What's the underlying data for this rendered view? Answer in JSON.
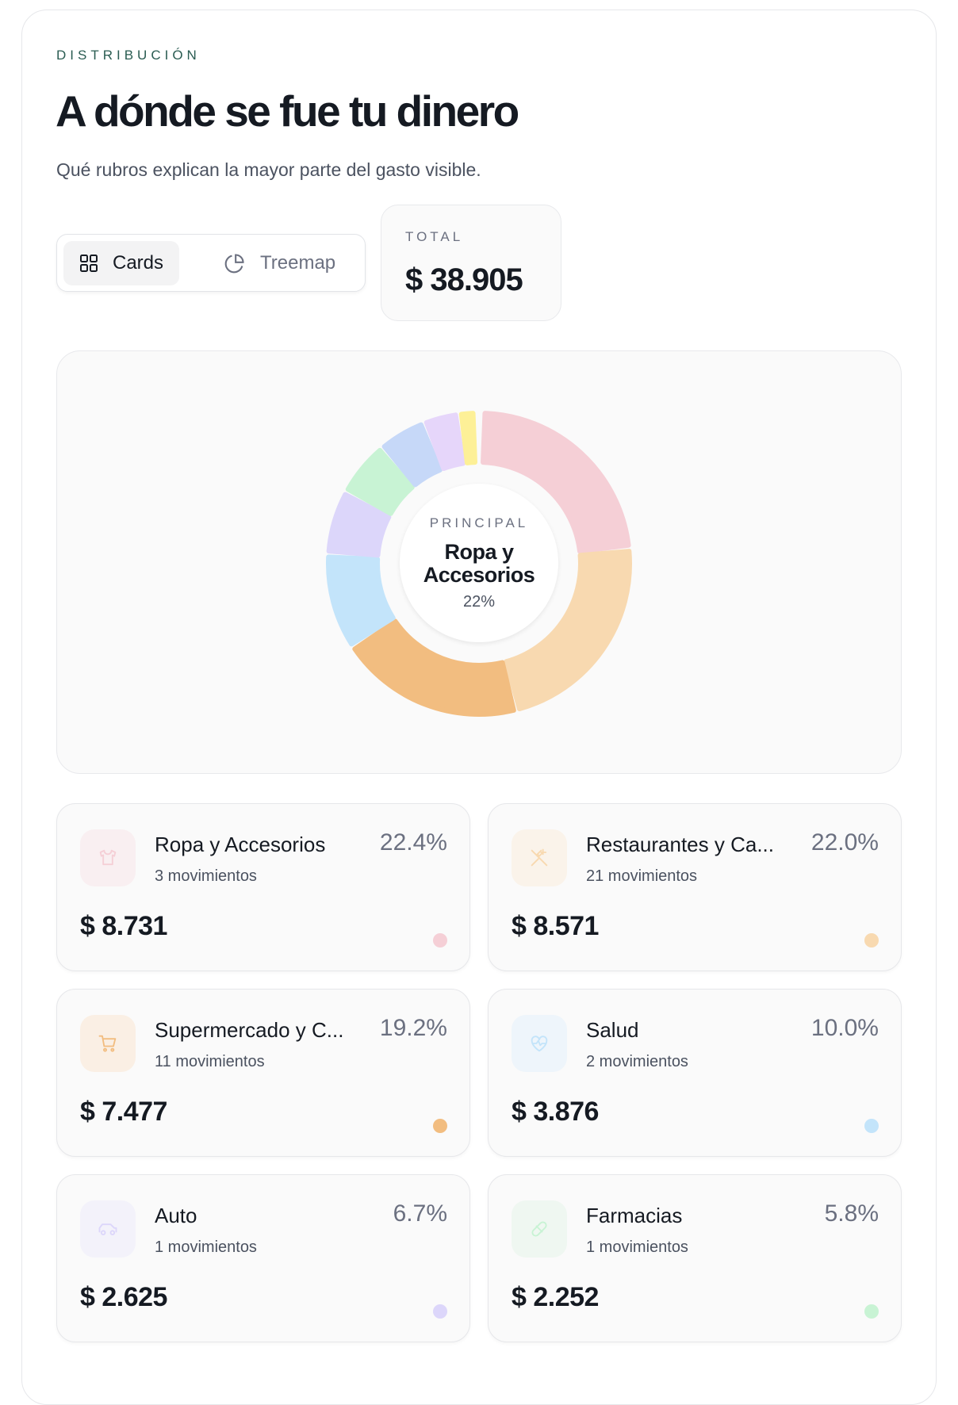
{
  "header": {
    "kicker": "DISTRIBUCIÓN",
    "title": "A dónde se fue tu dinero",
    "subtitle": "Qué rubros explican la mayor parte del gasto visible."
  },
  "view_toggle": {
    "options": [
      {
        "label": "Cards",
        "icon": "grid-icon",
        "active": true
      },
      {
        "label": "Treemap",
        "icon": "pie-chart-icon",
        "active": false
      }
    ]
  },
  "total": {
    "label": "TOTAL",
    "value": "$ 38.905"
  },
  "chart_data": {
    "type": "pie",
    "variant": "donut",
    "center": {
      "label": "PRINCIPAL",
      "name": "Ropa y Accesorios",
      "percent": "22%"
    },
    "categories": [
      "Ropa y Accesorios",
      "Restaurantes y Ca...",
      "Supermercado y C...",
      "Salud",
      "Auto",
      "Farmacias",
      "",
      "",
      ""
    ],
    "values": [
      22.4,
      22.0,
      19.2,
      10.0,
      6.7,
      5.8,
      5.0,
      3.7,
      1.8
    ],
    "colors": [
      "#f5cfd6",
      "#f8d9b0",
      "#f2bd80",
      "#c3e4fa",
      "#dcd6fa",
      "#c8f3d4",
      "#c6d8f8",
      "#e6d6fa",
      "#fdf097"
    ]
  },
  "cards": [
    {
      "name": "Ropa y Accesorios",
      "count": "3 movimientos",
      "percent": "22.4%",
      "amount": "$ 8.731",
      "color": "#f5cfd6",
      "icon": "shirt-icon",
      "icon_bg": "#f9eff1"
    },
    {
      "name": "Restaurantes y Ca...",
      "count": "21 movimientos",
      "percent": "22.0%",
      "amount": "$ 8.571",
      "color": "#f8d9b0",
      "icon": "utensils-icon",
      "icon_bg": "#faf3ea"
    },
    {
      "name": "Supermercado y C...",
      "count": "11 movimientos",
      "percent": "19.2%",
      "amount": "$ 7.477",
      "color": "#f2bd80",
      "icon": "cart-icon",
      "icon_bg": "#faefe4"
    },
    {
      "name": "Salud",
      "count": "2 movimientos",
      "percent": "10.0%",
      "amount": "$ 3.876",
      "color": "#c3e4fa",
      "icon": "heart-pulse-icon",
      "icon_bg": "#eef5fb"
    },
    {
      "name": "Auto",
      "count": "1 movimientos",
      "percent": "6.7%",
      "amount": "$ 2.625",
      "color": "#dcd6fa",
      "icon": "car-icon",
      "icon_bg": "#f3f2fa"
    },
    {
      "name": "Farmacias",
      "count": "1 movimientos",
      "percent": "5.8%",
      "amount": "$ 2.252",
      "color": "#c8f3d4",
      "icon": "pill-icon",
      "icon_bg": "#eff7f1"
    }
  ]
}
